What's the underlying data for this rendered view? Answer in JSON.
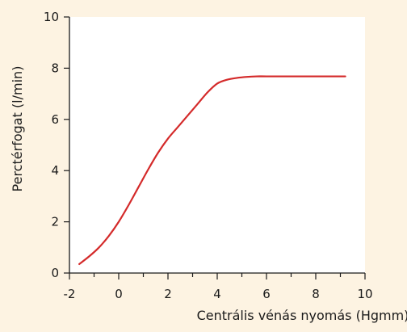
{
  "chart_data": {
    "type": "line",
    "title": "",
    "xlabel": "Centrális vénás nyomás (Hgmm)",
    "ylabel": "Perctérfogat (l/min)",
    "xlim": [
      -2,
      10
    ],
    "ylim": [
      0,
      10
    ],
    "xticks": [
      -2,
      0,
      2,
      4,
      6,
      8,
      10
    ],
    "yticks": [
      0,
      2,
      4,
      6,
      8,
      10
    ],
    "x_minor_ticks": [
      -1,
      1,
      3,
      5,
      7,
      9
    ],
    "x_tick_labels": [
      "-2",
      "0",
      "2",
      "4",
      "6",
      "8",
      "10"
    ],
    "y_tick_labels": [
      "0",
      "2",
      "4",
      "6",
      "8",
      "10"
    ],
    "grid": false,
    "legend": "none",
    "series": [
      {
        "color": "#d42a2a",
        "x": [
          -1.6,
          -1.2,
          -0.8,
          -0.4,
          0,
          0.4,
          0.8,
          1.2,
          1.6,
          2.0,
          2.4,
          2.8,
          3.2,
          3.6,
          4.0,
          4.4,
          4.8,
          5.2,
          5.6,
          6.0,
          7.0,
          8.0,
          9.2
        ],
        "y": [
          0.35,
          0.65,
          1.0,
          1.45,
          2.0,
          2.65,
          3.35,
          4.05,
          4.7,
          5.25,
          5.7,
          6.15,
          6.6,
          7.05,
          7.4,
          7.55,
          7.62,
          7.66,
          7.68,
          7.68,
          7.68,
          7.68,
          7.68
        ]
      }
    ]
  },
  "colors": {
    "background": "#fdf3e2",
    "plot_background": "#ffffff",
    "axis": "#1a1a1a"
  }
}
